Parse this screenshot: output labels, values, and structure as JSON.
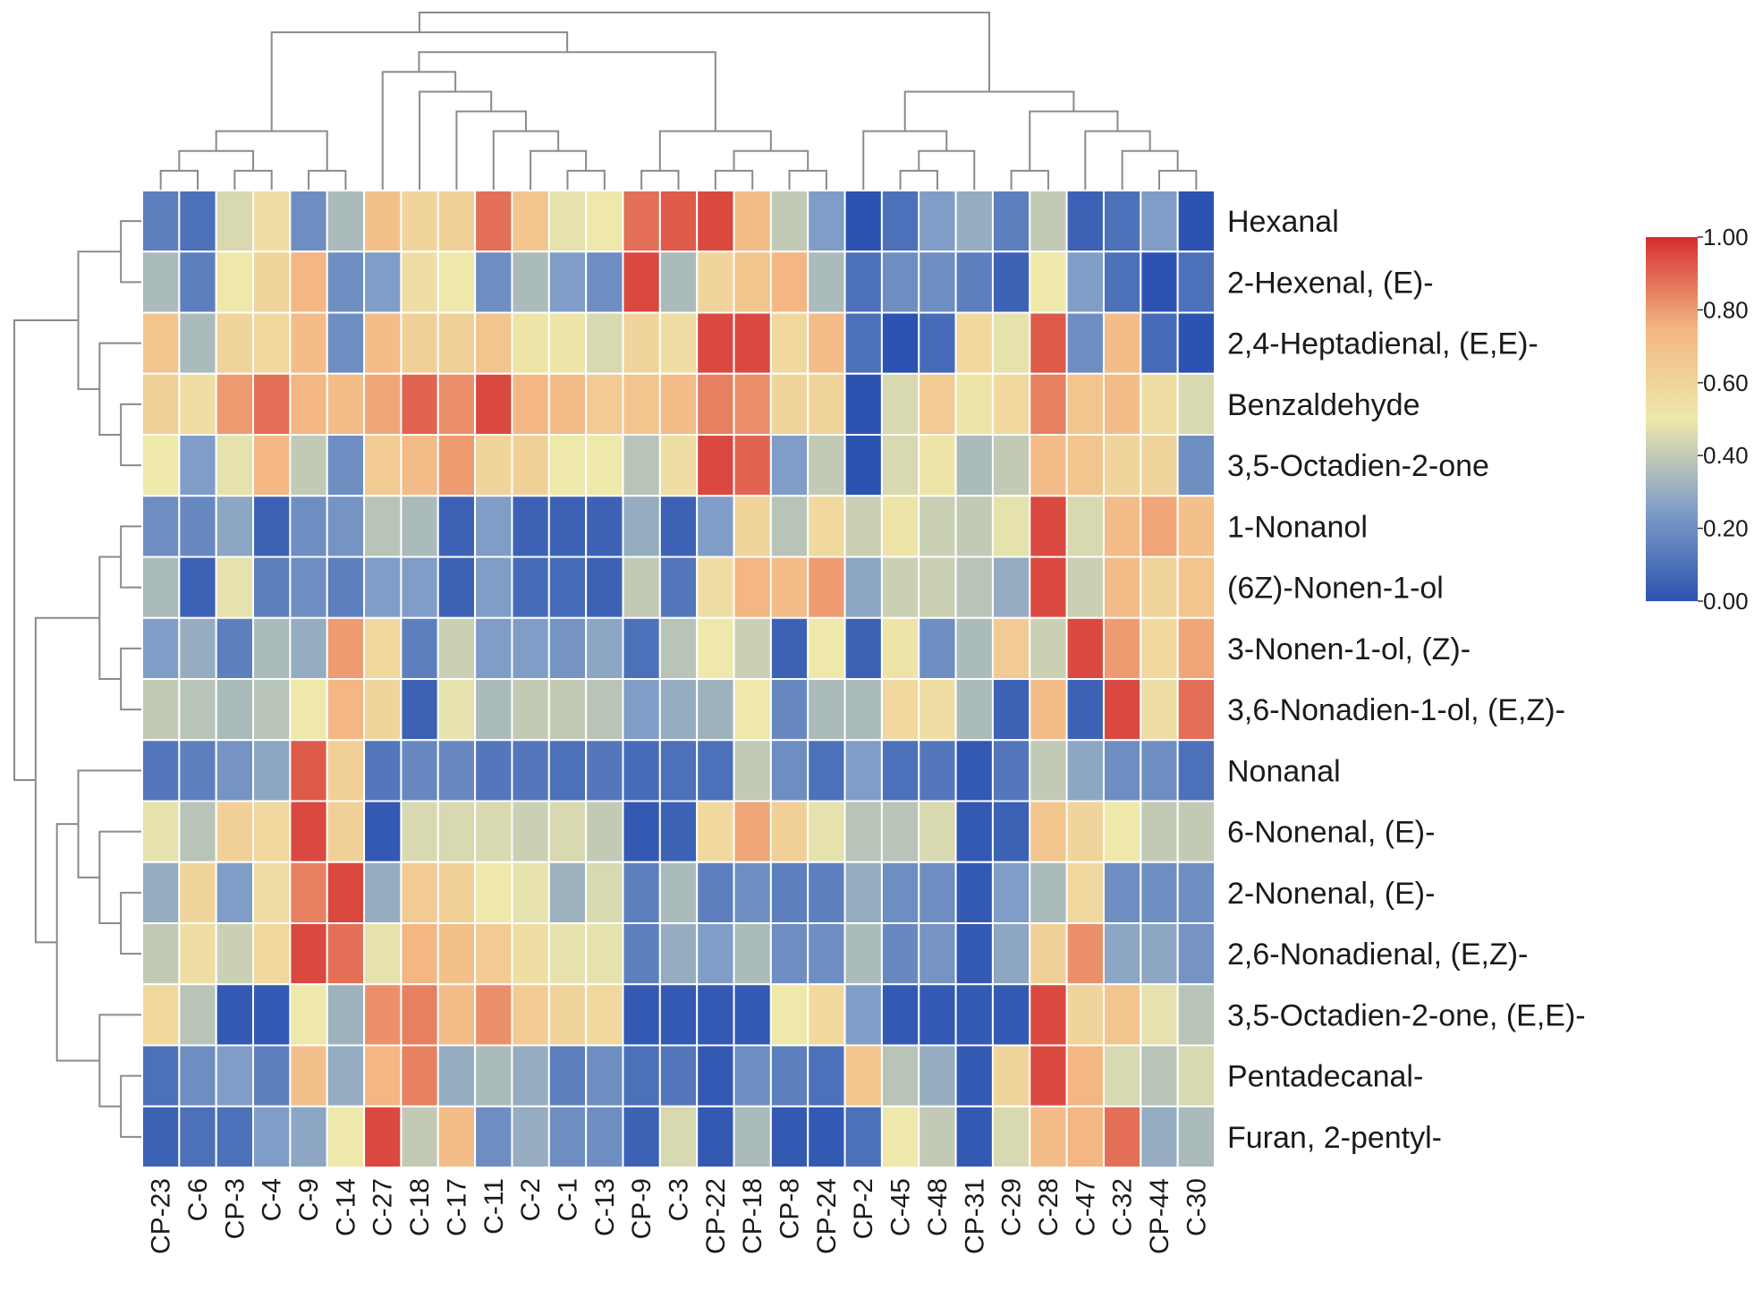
{
  "chart_data": {
    "type": "heatmap",
    "title": "",
    "xlabel": "",
    "ylabel": "",
    "columns": [
      "CP-23",
      "C-6",
      "CP-3",
      "C-4",
      "C-9",
      "C-14",
      "C-27",
      "C-18",
      "C-17",
      "C-11",
      "C-2",
      "C-1",
      "C-13",
      "CP-9",
      "C-3",
      "CP-22",
      "CP-18",
      "CP-8",
      "CP-24",
      "CP-2",
      "C-45",
      "C-48",
      "CP-31",
      "C-29",
      "C-28",
      "C-47",
      "C-32",
      "CP-44",
      "C-30"
    ],
    "rows": [
      "Hexanal",
      "2-Hexenal, (E)-",
      "2,4-Heptadienal, (E,E)-",
      "Benzaldehyde",
      "3,5-Octadien-2-one",
      "1-Nonanol",
      "(6Z)-Nonen-1-ol",
      "3-Nonen-1-ol, (Z)-",
      "3,6-Nonadien-1-ol, (E,Z)-",
      "Nonanal",
      "6-Nonenal, (E)-",
      "2-Nonenal, (E)-",
      "2,6-Nonadienal, (E,Z)-",
      "3,5-Octadien-2-one, (E,E)-",
      "Pentadecanal-",
      "Furan, 2-pentyl-"
    ],
    "values": [
      [
        0.15,
        0.1,
        0.45,
        0.55,
        0.2,
        0.35,
        0.7,
        0.6,
        0.62,
        0.88,
        0.68,
        0.48,
        0.5,
        0.88,
        0.92,
        0.95,
        0.72,
        0.4,
        0.25,
        0.0,
        0.1,
        0.25,
        0.3,
        0.15,
        0.4,
        0.05,
        0.1,
        0.25,
        0.0
      ],
      [
        0.35,
        0.15,
        0.5,
        0.6,
        0.75,
        0.2,
        0.25,
        0.55,
        0.5,
        0.2,
        0.35,
        0.25,
        0.2,
        0.95,
        0.35,
        0.6,
        0.68,
        0.75,
        0.35,
        0.1,
        0.2,
        0.2,
        0.15,
        0.05,
        0.5,
        0.25,
        0.1,
        0.0,
        0.1
      ],
      [
        0.68,
        0.35,
        0.6,
        0.58,
        0.72,
        0.2,
        0.72,
        0.62,
        0.62,
        0.68,
        0.52,
        0.52,
        0.45,
        0.6,
        0.55,
        0.95,
        0.95,
        0.58,
        0.72,
        0.1,
        0.0,
        0.08,
        0.58,
        0.48,
        0.92,
        0.2,
        0.72,
        0.08,
        0.0
      ],
      [
        0.62,
        0.55,
        0.8,
        0.88,
        0.75,
        0.72,
        0.78,
        0.9,
        0.82,
        0.95,
        0.75,
        0.72,
        0.65,
        0.68,
        0.72,
        0.85,
        0.82,
        0.6,
        0.6,
        0.0,
        0.45,
        0.65,
        0.52,
        0.58,
        0.85,
        0.68,
        0.72,
        0.55,
        0.45
      ],
      [
        0.5,
        0.25,
        0.48,
        0.75,
        0.4,
        0.2,
        0.65,
        0.72,
        0.8,
        0.6,
        0.62,
        0.5,
        0.5,
        0.38,
        0.55,
        0.95,
        0.9,
        0.25,
        0.4,
        0.0,
        0.45,
        0.52,
        0.35,
        0.4,
        0.72,
        0.68,
        0.6,
        0.6,
        0.2
      ],
      [
        0.2,
        0.18,
        0.28,
        0.05,
        0.2,
        0.22,
        0.38,
        0.35,
        0.05,
        0.25,
        0.05,
        0.05,
        0.05,
        0.3,
        0.05,
        0.25,
        0.6,
        0.38,
        0.58,
        0.42,
        0.52,
        0.42,
        0.4,
        0.48,
        0.95,
        0.45,
        0.72,
        0.78,
        0.7
      ],
      [
        0.35,
        0.05,
        0.48,
        0.15,
        0.2,
        0.15,
        0.25,
        0.25,
        0.05,
        0.25,
        0.08,
        0.08,
        0.05,
        0.4,
        0.12,
        0.55,
        0.75,
        0.72,
        0.8,
        0.28,
        0.42,
        0.42,
        0.38,
        0.3,
        0.95,
        0.42,
        0.72,
        0.6,
        0.68
      ],
      [
        0.25,
        0.3,
        0.15,
        0.35,
        0.3,
        0.8,
        0.58,
        0.15,
        0.42,
        0.25,
        0.25,
        0.22,
        0.28,
        0.1,
        0.38,
        0.5,
        0.42,
        0.05,
        0.5,
        0.05,
        0.52,
        0.2,
        0.35,
        0.65,
        0.42,
        0.95,
        0.8,
        0.58,
        0.78
      ],
      [
        0.4,
        0.38,
        0.35,
        0.38,
        0.5,
        0.75,
        0.6,
        0.05,
        0.48,
        0.35,
        0.4,
        0.4,
        0.38,
        0.25,
        0.3,
        0.32,
        0.5,
        0.18,
        0.35,
        0.35,
        0.58,
        0.55,
        0.35,
        0.05,
        0.72,
        0.05,
        0.95,
        0.55,
        0.88
      ],
      [
        0.12,
        0.15,
        0.22,
        0.28,
        0.92,
        0.62,
        0.12,
        0.18,
        0.18,
        0.12,
        0.12,
        0.1,
        0.12,
        0.08,
        0.1,
        0.1,
        0.4,
        0.2,
        0.1,
        0.25,
        0.1,
        0.12,
        0.02,
        0.12,
        0.4,
        0.28,
        0.2,
        0.2,
        0.1
      ],
      [
        0.48,
        0.38,
        0.62,
        0.58,
        0.95,
        0.62,
        0.02,
        0.45,
        0.45,
        0.45,
        0.42,
        0.45,
        0.4,
        0.02,
        0.05,
        0.58,
        0.78,
        0.62,
        0.48,
        0.38,
        0.38,
        0.45,
        0.02,
        0.05,
        0.68,
        0.6,
        0.5,
        0.4,
        0.4
      ],
      [
        0.3,
        0.6,
        0.25,
        0.55,
        0.85,
        0.95,
        0.3,
        0.65,
        0.62,
        0.5,
        0.48,
        0.32,
        0.45,
        0.15,
        0.35,
        0.15,
        0.2,
        0.15,
        0.15,
        0.3,
        0.2,
        0.2,
        0.02,
        0.25,
        0.35,
        0.58,
        0.2,
        0.2,
        0.2
      ],
      [
        0.4,
        0.55,
        0.42,
        0.58,
        0.95,
        0.88,
        0.48,
        0.75,
        0.7,
        0.65,
        0.55,
        0.48,
        0.48,
        0.15,
        0.3,
        0.25,
        0.35,
        0.2,
        0.2,
        0.35,
        0.18,
        0.22,
        0.02,
        0.28,
        0.62,
        0.82,
        0.28,
        0.28,
        0.22
      ],
      [
        0.58,
        0.38,
        0.02,
        0.02,
        0.5,
        0.32,
        0.82,
        0.85,
        0.72,
        0.82,
        0.65,
        0.6,
        0.58,
        0.02,
        0.02,
        0.02,
        0.02,
        0.5,
        0.58,
        0.25,
        0.02,
        0.02,
        0.02,
        0.02,
        0.95,
        0.6,
        0.68,
        0.48,
        0.38
      ],
      [
        0.1,
        0.2,
        0.25,
        0.15,
        0.7,
        0.3,
        0.75,
        0.85,
        0.3,
        0.35,
        0.3,
        0.15,
        0.2,
        0.1,
        0.12,
        0.02,
        0.2,
        0.15,
        0.1,
        0.68,
        0.38,
        0.3,
        0.02,
        0.6,
        0.95,
        0.75,
        0.45,
        0.38,
        0.45
      ],
      [
        0.05,
        0.1,
        0.1,
        0.25,
        0.28,
        0.5,
        0.95,
        0.4,
        0.72,
        0.2,
        0.3,
        0.2,
        0.2,
        0.05,
        0.45,
        0.02,
        0.35,
        0.02,
        0.02,
        0.1,
        0.5,
        0.4,
        0.02,
        0.45,
        0.72,
        0.75,
        0.88,
        0.3,
        0.35
      ]
    ],
    "colorbar": {
      "range": [
        0,
        1
      ],
      "ticks": [
        "1.00",
        "0.80",
        "0.60",
        "0.40",
        "0.20",
        "0.00"
      ],
      "colors": [
        "#2c53b1",
        "#7f9dc6",
        "#eee8ab",
        "#f4b683",
        "#d42e2e"
      ]
    },
    "col_dendrogram": [
      [
        "CP-23",
        "C-6"
      ],
      [
        "CP-3",
        "C-4"
      ],
      [
        "C-9",
        "C-14"
      ],
      [
        "C-1",
        "C-13"
      ],
      [
        "C-2",
        3
      ],
      [
        "C-11",
        4
      ],
      [
        "C-17",
        5
      ],
      [
        "C-18",
        6
      ],
      [
        "C-27",
        7
      ],
      [
        "CP-22",
        "CP-18"
      ],
      [
        "CP-8",
        "CP-24"
      ],
      [
        9,
        10
      ],
      [
        "CP-9",
        "C-3"
      ],
      [
        12,
        11
      ],
      [
        8,
        13
      ],
      [
        0,
        1
      ],
      [
        15,
        2
      ],
      [
        16,
        14
      ],
      [
        "C-45",
        "C-48"
      ],
      [
        18,
        "CP-31"
      ],
      [
        "CP-2",
        19
      ],
      [
        "CP-44",
        "C-30"
      ],
      [
        "C-32",
        21
      ],
      [
        "C-47",
        22
      ],
      [
        "C-29",
        "C-28"
      ],
      [
        24,
        23
      ],
      [
        20,
        25
      ],
      [
        17,
        26
      ]
    ],
    "row_dendrogram": [
      [
        "Hexanal",
        "2-Hexenal, (E)-"
      ],
      [
        "Benzaldehyde",
        "3,5-Octadien-2-one"
      ],
      [
        "2,4-Heptadienal, (E,E)-",
        1
      ],
      [
        0,
        2
      ],
      [
        "1-Nonanol",
        "(6Z)-Nonen-1-ol"
      ],
      [
        "3-Nonen-1-ol, (Z)-",
        "3,6-Nonadien-1-ol, (E,Z)-"
      ],
      [
        4,
        5
      ],
      [
        "2-Nonenal, (E)-",
        "2,6-Nonadienal, (E,Z)-"
      ],
      [
        "6-Nonenal, (E)-",
        7
      ],
      [
        "Nonanal",
        8
      ],
      [
        "Pentadecanal-",
        "Furan, 2-pentyl-"
      ],
      [
        "3,5-Octadien-2-one, (E,E)-",
        10
      ],
      [
        9,
        11
      ],
      [
        6,
        12
      ],
      [
        3,
        13
      ]
    ]
  }
}
